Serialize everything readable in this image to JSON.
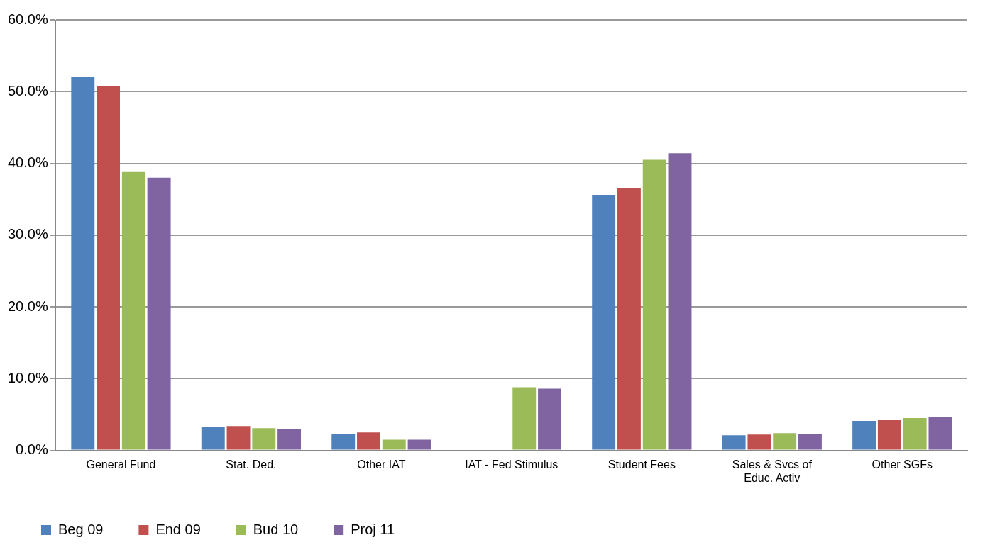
{
  "chart_data": {
    "type": "bar",
    "categories": [
      "General Fund",
      "Stat. Ded.",
      "Other IAT",
      "IAT - Fed Stimulus",
      "Student Fees",
      "Sales & Svcs of Educ. Activ",
      "Other SGFs"
    ],
    "series": [
      {
        "name": "Beg 09",
        "color": "#4f81bd",
        "values": [
          52,
          3.3,
          2.3,
          0,
          35.6,
          2.1,
          4.1
        ]
      },
      {
        "name": "End 09",
        "color": "#c0504d",
        "values": [
          50.8,
          3.4,
          2.5,
          0,
          36.5,
          2.2,
          4.2
        ]
      },
      {
        "name": "Bud 10",
        "color": "#9bbb59",
        "values": [
          38.8,
          3.1,
          1.5,
          8.8,
          40.5,
          2.4,
          4.5
        ]
      },
      {
        "name": "Proj 11",
        "color": "#8064a2",
        "values": [
          38,
          3,
          1.5,
          8.6,
          41.4,
          2.3,
          4.7
        ]
      }
    ],
    "ylim": [
      0,
      60
    ],
    "yticks": [
      {
        "value": 0,
        "label": "0.0%"
      },
      {
        "value": 10,
        "label": "10.0%"
      },
      {
        "value": 20,
        "label": "20.0%"
      },
      {
        "value": 30,
        "label": "30.0%"
      },
      {
        "value": 40,
        "label": "40.0%"
      },
      {
        "value": 50,
        "label": "50.0%"
      },
      {
        "value": 60,
        "label": "60.0%"
      }
    ],
    "grid": "y",
    "legend": "bottom left"
  }
}
